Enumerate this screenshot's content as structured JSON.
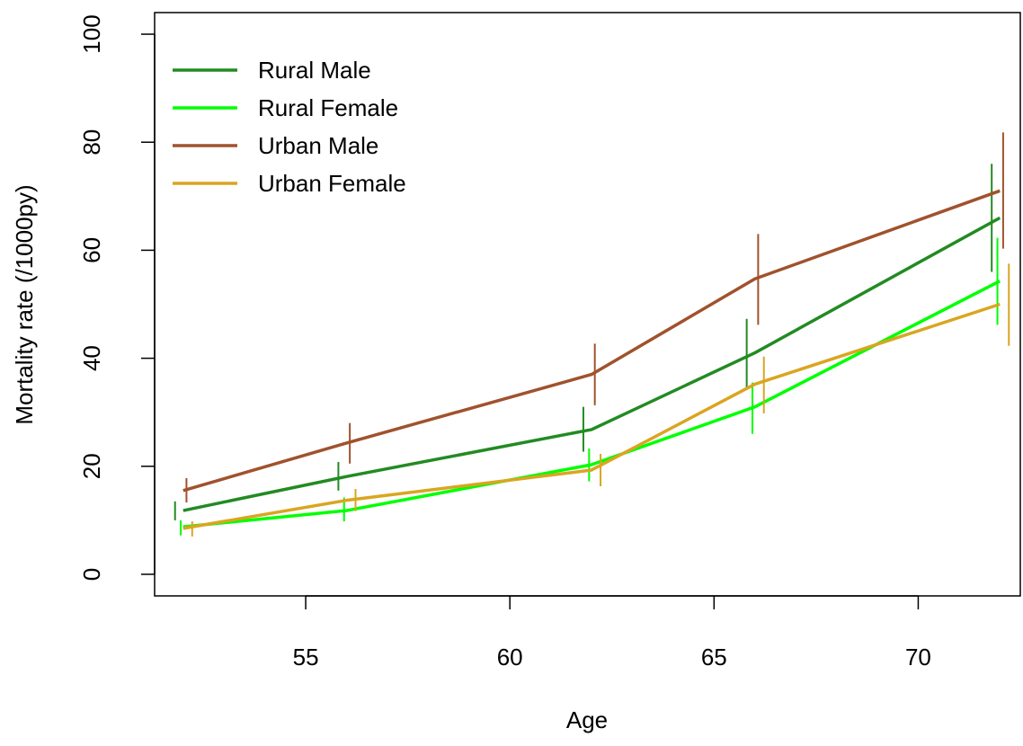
{
  "chart_data": {
    "type": "line",
    "xlabel": "Age",
    "ylabel": "Mortality rate (/1000py)",
    "xlim": [
      51.3,
      72.5
    ],
    "ylim": [
      -4,
      104
    ],
    "xticks": [
      55,
      60,
      65,
      70
    ],
    "yticks": [
      0,
      20,
      40,
      60,
      80,
      100
    ],
    "x": [
      52,
      56,
      62,
      66,
      72
    ],
    "grid": false,
    "legend_position": "top-left",
    "series": [
      {
        "name": "Rural Male",
        "color": "#228B22",
        "values": [
          11.8,
          18.1,
          26.8,
          41.0,
          66.0
        ],
        "ci_low": [
          10.0,
          15.5,
          22.7,
          34.5,
          56.0
        ],
        "ci_high": [
          13.5,
          20.8,
          31.0,
          47.3,
          76.0
        ]
      },
      {
        "name": "Rural Female",
        "color": "#00FF00",
        "values": [
          8.8,
          11.8,
          20.3,
          31.0,
          54.3
        ],
        "ci_low": [
          7.2,
          9.8,
          17.2,
          26.0,
          46.2
        ],
        "ci_high": [
          10.0,
          14.2,
          23.3,
          35.5,
          62.3
        ]
      },
      {
        "name": "Urban Male",
        "color": "#A0522D",
        "values": [
          15.5,
          24.3,
          37.0,
          54.7,
          71.0
        ],
        "ci_low": [
          13.3,
          20.5,
          31.3,
          46.2,
          60.3
        ],
        "ci_high": [
          17.8,
          28.0,
          42.7,
          63.0,
          81.8
        ]
      },
      {
        "name": "Urban Female",
        "color": "#DAA520",
        "values": [
          8.5,
          13.7,
          19.3,
          35.2,
          50.0
        ],
        "ci_low": [
          7.0,
          11.7,
          16.3,
          29.8,
          42.3
        ],
        "ci_high": [
          9.8,
          15.8,
          22.3,
          40.3,
          57.5
        ]
      }
    ]
  }
}
